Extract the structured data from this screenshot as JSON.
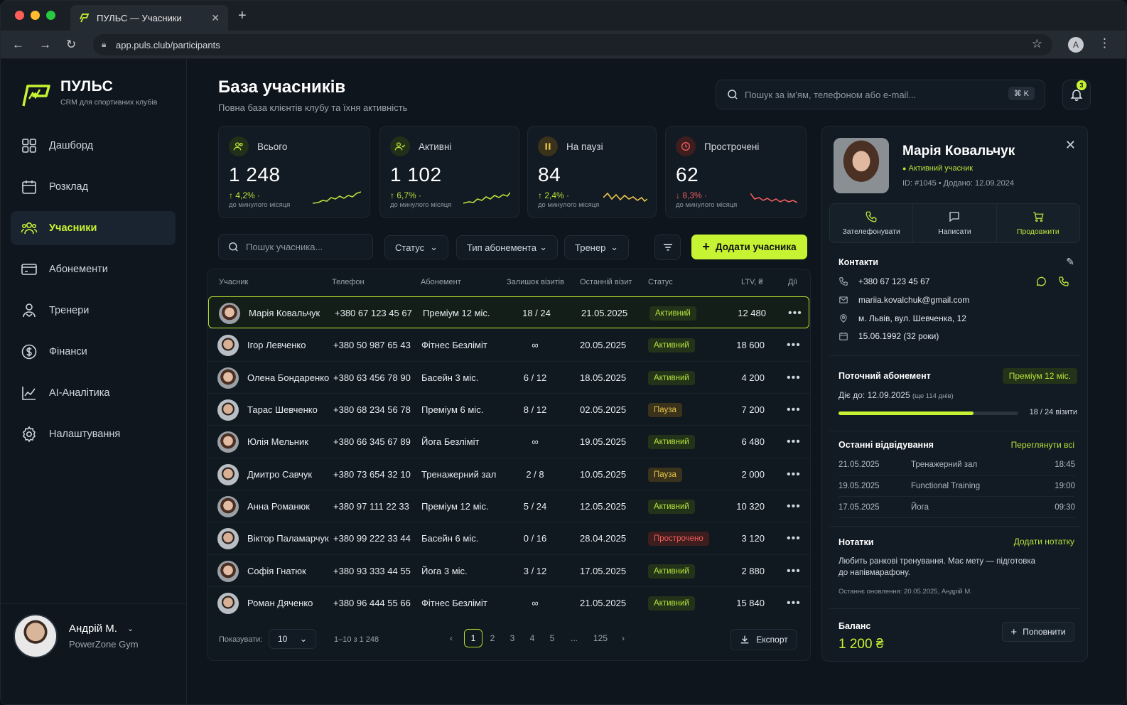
{
  "browser": {
    "tab_title": "ПУЛЬС — Учасники",
    "url": "app.puls.club/participants",
    "profile_initial": "A"
  },
  "brand": {
    "name": "ПУЛЬС",
    "tagline": "CRM для спортивних клубів"
  },
  "sidebar": {
    "items": [
      {
        "label": "Дашборд",
        "icon": "grid-icon"
      },
      {
        "label": "Розклад",
        "icon": "calendar-icon"
      },
      {
        "label": "Учасники",
        "icon": "users-icon",
        "active": true
      },
      {
        "label": "Абонементи",
        "icon": "card-icon"
      },
      {
        "label": "Тренери",
        "icon": "trainer-icon"
      },
      {
        "label": "Фінанси",
        "icon": "dollar-icon"
      },
      {
        "label": "AI-Аналітика",
        "icon": "chart-icon"
      },
      {
        "label": "Налаштування",
        "icon": "gear-icon"
      }
    ],
    "user": {
      "name": "Андрій М.",
      "gym": "PowerZone Gym"
    }
  },
  "header": {
    "title": "База учасників",
    "subtitle": "Повна база клієнтів клубу та їхня активність",
    "search_placeholder": "Пошук за ім'ям, телефоном або e-mail...",
    "shortcut": "⌘ K",
    "notif_count": "3"
  },
  "stats": [
    {
      "label": "Всього",
      "value": "1 248",
      "change": "4,2%",
      "direction": "up",
      "note": "до минулого місяця",
      "color": "#b6e43a"
    },
    {
      "label": "Активні",
      "value": "1 102",
      "change": "6,7%",
      "direction": "up",
      "note": "до минулого місяця",
      "color": "#b6e43a"
    },
    {
      "label": "На паузі",
      "value": "84",
      "change": "2,4%",
      "direction": "up",
      "note": "до минулого місяця",
      "color": "#e7c44a"
    },
    {
      "label": "Прострочені",
      "value": "62",
      "change": "8,3%",
      "direction": "down",
      "note": "до минулого місяця",
      "color": "#ef5d5d"
    }
  ],
  "filters": {
    "search_placeholder": "Пошук учасника...",
    "status": "Статус",
    "type": "Тип абонемента",
    "trainer": "Тренер",
    "add_label": "Додати учасника"
  },
  "table": {
    "columns": [
      "Учасник",
      "Телефон",
      "Абонемент",
      "Залишок візитів",
      "Останній візит",
      "Статус",
      "LTV, ₴",
      "Дії"
    ],
    "rows": [
      {
        "name": "Марія Ковальчук",
        "phone": "+380 67 123 45 67",
        "plan": "Преміум 12 міс.",
        "visits": "18 / 24",
        "last": "21.05.2025",
        "status": "Активний",
        "kind": "act",
        "ltv": "12 480",
        "gender": "f"
      },
      {
        "name": "Ігор Левченко",
        "phone": "+380 50 987 65 43",
        "plan": "Фітнес Безліміт",
        "visits": "∞",
        "last": "20.05.2025",
        "status": "Активний",
        "kind": "act",
        "ltv": "18 600",
        "gender": "m"
      },
      {
        "name": "Олена Бондаренко",
        "phone": "+380 63 456 78 90",
        "plan": "Басейн 3 міс.",
        "visits": "6 / 12",
        "last": "18.05.2025",
        "status": "Активний",
        "kind": "act",
        "ltv": "4 200",
        "gender": "f"
      },
      {
        "name": "Тарас Шевченко",
        "phone": "+380 68 234 56 78",
        "plan": "Преміум 6 міс.",
        "visits": "8 / 12",
        "last": "02.05.2025",
        "status": "Пауза",
        "kind": "pau",
        "ltv": "7 200",
        "gender": "m"
      },
      {
        "name": "Юлія Мельник",
        "phone": "+380 66 345 67 89",
        "plan": "Йога Безліміт",
        "visits": "∞",
        "last": "19.05.2025",
        "status": "Активний",
        "kind": "act",
        "ltv": "6 480",
        "gender": "f"
      },
      {
        "name": "Дмитро Савчук",
        "phone": "+380 73 654 32 10",
        "plan": "Тренажерний зал",
        "visits": "2 / 8",
        "last": "10.05.2025",
        "status": "Пауза",
        "kind": "pau",
        "ltv": "2 000",
        "gender": "m"
      },
      {
        "name": "Анна Романюк",
        "phone": "+380 97 111 22 33",
        "plan": "Преміум 12 міс.",
        "visits": "5 / 24",
        "last": "12.05.2025",
        "status": "Активний",
        "kind": "act",
        "ltv": "10 320",
        "gender": "f"
      },
      {
        "name": "Віктор Паламарчук",
        "phone": "+380 99 222 33 44",
        "plan": "Басейн 6 міс.",
        "visits": "0 / 16",
        "last": "28.04.2025",
        "status": "Прострочено",
        "kind": "exp",
        "ltv": "3 120",
        "gender": "m"
      },
      {
        "name": "Софія Гнатюк",
        "phone": "+380 93 333 44 55",
        "plan": "Йога 3 міс.",
        "visits": "3 / 12",
        "last": "17.05.2025",
        "status": "Активний",
        "kind": "act",
        "ltv": "2 880",
        "gender": "f"
      },
      {
        "name": "Роман Дяченко",
        "phone": "+380 96 444 55 66",
        "plan": "Фітнес Безліміт",
        "visits": "∞",
        "last": "21.05.2025",
        "status": "Активний",
        "kind": "act",
        "ltv": "15 840",
        "gender": "m"
      }
    ],
    "more": "•••"
  },
  "pager": {
    "show_label": "Показувати:",
    "per_page": "10",
    "range": "1–10 з 1 248",
    "pages": [
      "1",
      "2",
      "3",
      "4",
      "5",
      "...",
      "125"
    ],
    "current": "1",
    "export_label": "Експорт"
  },
  "profile": {
    "name": "Марія Ковальчук",
    "status": "Активний учасник",
    "id_line": "ID: #1045  •  Додано: 12.09.2024",
    "actions": [
      "Зателефонувати",
      "Написати",
      "Продовжити"
    ],
    "contacts_title": "Контакти",
    "phone": "+380 67 123 45 67",
    "email": "mariia.kovalchuk@gmail.com",
    "address": "м. Львів, вул. Шевченка, 12",
    "birthday": "15.06.1992 (32 роки)",
    "sub_title": "Поточний абонемент",
    "sub_badge": "Преміум 12 міс.",
    "sub_until": "Діє до: 12.09.2025",
    "sub_days": "(ще 114 днів)",
    "sub_visits": "18 / 24 візити",
    "sub_progress": 0.75,
    "visits_title": "Останні відвідування",
    "visits_link": "Переглянути всі",
    "visits": [
      {
        "date": "21.05.2025",
        "activity": "Тренажерний зал",
        "time": "18:45"
      },
      {
        "date": "19.05.2025",
        "activity": "Functional Training",
        "time": "19:00"
      },
      {
        "date": "17.05.2025",
        "activity": "Йога",
        "time": "09:30"
      }
    ],
    "notes_title": "Нотатки",
    "notes_link": "Додати нотатку",
    "notes_text_1": "Любить ранкові тренування. Має мету — підготовка",
    "notes_text_2": "до напівмарафону.",
    "notes_updated": "Останнє оновлення: 20.05.2025, Андрій М.",
    "balance_title": "Баланс",
    "balance_value": "1 200 ₴",
    "topup_label": "Поповнити"
  }
}
